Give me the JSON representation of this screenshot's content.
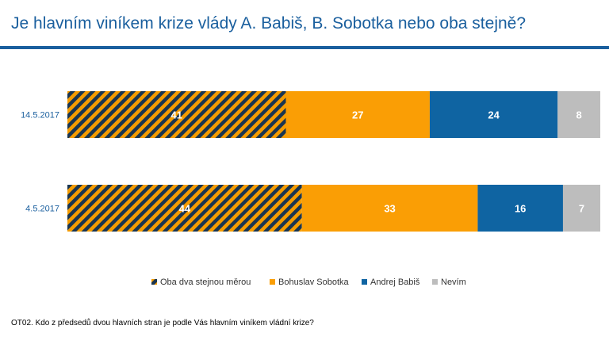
{
  "title": "Je hlavním viníkem krize vlády A. Babiš, B. Sobotka nebo oba stejně?",
  "footnote": "OT02. Kdo z předsedů dvou hlavních stran je podle Vás hlavním viníkem vládní krize?",
  "chart_data": {
    "type": "bar",
    "orientation": "horizontal",
    "stacked": true,
    "percent_stacked": true,
    "categories": [
      "14.5.2017",
      "4.5.2017"
    ],
    "series": [
      {
        "name": "Oba dva stejnou měrou",
        "values": [
          41,
          44
        ],
        "color": "#f59c00",
        "pattern": "diagonal-stripes",
        "stripe_color": "#1a3550"
      },
      {
        "name": "Bohuslav Sobotka",
        "values": [
          27,
          33
        ],
        "color": "#fa9e05"
      },
      {
        "name": "Andrej Babiš",
        "values": [
          24,
          16
        ],
        "color": "#0f64a2"
      },
      {
        "name": "Nevím",
        "values": [
          8,
          7
        ],
        "color": "#bdbdbd"
      }
    ],
    "legend_position": "bottom",
    "data_labels": true,
    "grid": false
  }
}
